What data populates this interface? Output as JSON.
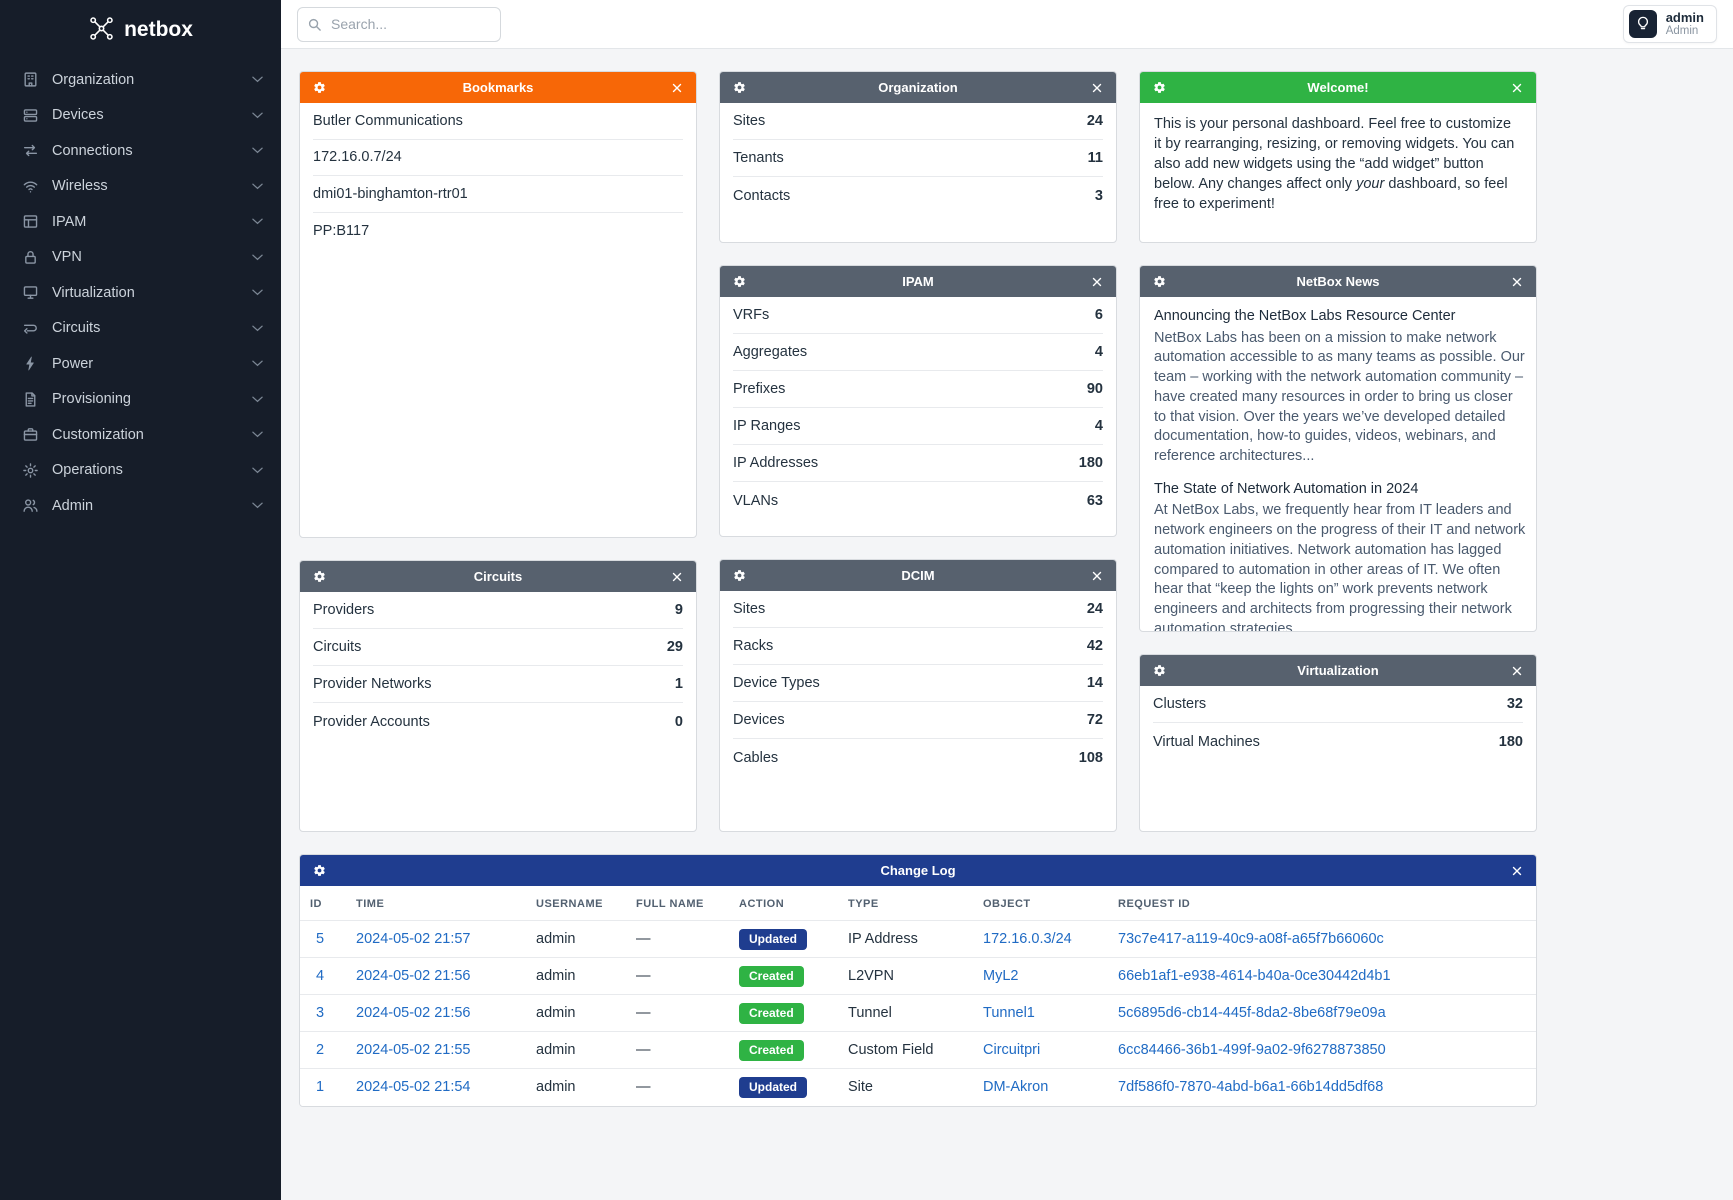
{
  "brand": {
    "logo_text": "netbox"
  },
  "topbar": {
    "search_placeholder": "Search...",
    "user": {
      "name": "admin",
      "role": "Admin"
    }
  },
  "sidebar": {
    "items": [
      {
        "name": "sidebar-item-organization",
        "label": "Organization",
        "icon": "organization-icon"
      },
      {
        "name": "sidebar-item-devices",
        "label": "Devices",
        "icon": "devices-icon"
      },
      {
        "name": "sidebar-item-connections",
        "label": "Connections",
        "icon": "connections-icon"
      },
      {
        "name": "sidebar-item-wireless",
        "label": "Wireless",
        "icon": "wireless-icon"
      },
      {
        "name": "sidebar-item-ipam",
        "label": "IPAM",
        "icon": "ipam-icon"
      },
      {
        "name": "sidebar-item-vpn",
        "label": "VPN",
        "icon": "vpn-icon"
      },
      {
        "name": "sidebar-item-virtualization",
        "label": "Virtualization",
        "icon": "virtualization-icon"
      },
      {
        "name": "sidebar-item-circuits",
        "label": "Circuits",
        "icon": "circuits-icon"
      },
      {
        "name": "sidebar-item-power",
        "label": "Power",
        "icon": "power-icon"
      },
      {
        "name": "sidebar-item-provisioning",
        "label": "Provisioning",
        "icon": "provisioning-icon"
      },
      {
        "name": "sidebar-item-customization",
        "label": "Customization",
        "icon": "customization-icon"
      },
      {
        "name": "sidebar-item-operations",
        "label": "Operations",
        "icon": "operations-icon"
      },
      {
        "name": "sidebar-item-admin",
        "label": "Admin",
        "icon": "admin-icon"
      }
    ]
  },
  "widgets": {
    "bookmarks": {
      "title": "Bookmarks",
      "items": [
        "Butler Communications",
        "172.16.0.7/24",
        "dmi01-binghamton-rtr01",
        "PP:B117"
      ]
    },
    "organization": {
      "title": "Organization",
      "stats": [
        {
          "label": "Sites",
          "value": "24"
        },
        {
          "label": "Tenants",
          "value": "11"
        },
        {
          "label": "Contacts",
          "value": "3"
        }
      ]
    },
    "welcome": {
      "title": "Welcome!",
      "text_before": "This is your personal dashboard. Feel free to customize it by rearranging, resizing, or removing widgets. You can also add new widgets using the “add widget” button below. Any changes affect only ",
      "text_italic": "your",
      "text_after": " dashboard, so feel free to experiment!"
    },
    "ipam": {
      "title": "IPAM",
      "stats": [
        {
          "label": "VRFs",
          "value": "6"
        },
        {
          "label": "Aggregates",
          "value": "4"
        },
        {
          "label": "Prefixes",
          "value": "90"
        },
        {
          "label": "IP Ranges",
          "value": "4"
        },
        {
          "label": "IP Addresses",
          "value": "180"
        },
        {
          "label": "VLANs",
          "value": "63"
        }
      ]
    },
    "news": {
      "title": "NetBox News",
      "articles": [
        {
          "headline": "Announcing the NetBox Labs Resource Center",
          "body": "NetBox Labs has been on a mission to make network automation accessible to as many teams as possible. Our team – working with the network automation community – have created many resources in order to bring us closer to that vision. Over the years we’ve developed detailed documentation, how-to guides, videos, webinars, and reference architectures..."
        },
        {
          "headline": "The State of Network Automation in 2024",
          "body": "At NetBox Labs, we frequently hear from IT leaders and network engineers on the progress of their IT and network automation initiatives. Network automation has lagged compared to automation in other areas of IT. We often hear that “keep the lights on” work prevents network engineers and architects from progressing their network automation strategies."
        }
      ]
    },
    "circuits": {
      "title": "Circuits",
      "stats": [
        {
          "label": "Providers",
          "value": "9"
        },
        {
          "label": "Circuits",
          "value": "29"
        },
        {
          "label": "Provider Networks",
          "value": "1"
        },
        {
          "label": "Provider Accounts",
          "value": "0"
        }
      ]
    },
    "dcim": {
      "title": "DCIM",
      "stats": [
        {
          "label": "Sites",
          "value": "24"
        },
        {
          "label": "Racks",
          "value": "42"
        },
        {
          "label": "Device Types",
          "value": "14"
        },
        {
          "label": "Devices",
          "value": "72"
        },
        {
          "label": "Cables",
          "value": "108"
        }
      ]
    },
    "virtualization": {
      "title": "Virtualization",
      "stats": [
        {
          "label": "Clusters",
          "value": "32"
        },
        {
          "label": "Virtual Machines",
          "value": "180"
        }
      ]
    },
    "changelog": {
      "title": "Change Log",
      "columns": [
        "ID",
        "TIME",
        "USERNAME",
        "FULL NAME",
        "ACTION",
        "TYPE",
        "OBJECT",
        "REQUEST ID"
      ],
      "rows": [
        {
          "id": "5",
          "time": "2024-05-02 21:57",
          "username": "admin",
          "full_name": "—",
          "action": {
            "label": "Updated",
            "kind": "updated"
          },
          "type": "IP Address",
          "object": "172.16.0.3/24",
          "request_id": "73c7e417-a119-40c9-a08f-a65f7b66060c"
        },
        {
          "id": "4",
          "time": "2024-05-02 21:56",
          "username": "admin",
          "full_name": "—",
          "action": {
            "label": "Created",
            "kind": "created"
          },
          "type": "L2VPN",
          "object": "MyL2",
          "request_id": "66eb1af1-e938-4614-b40a-0ce30442d4b1"
        },
        {
          "id": "3",
          "time": "2024-05-02 21:56",
          "username": "admin",
          "full_name": "—",
          "action": {
            "label": "Created",
            "kind": "created"
          },
          "type": "Tunnel",
          "object": "Tunnel1",
          "request_id": "5c6895d6-cb14-445f-8da2-8be68f79e09a"
        },
        {
          "id": "2",
          "time": "2024-05-02 21:55",
          "username": "admin",
          "full_name": "—",
          "action": {
            "label": "Created",
            "kind": "created"
          },
          "type": "Custom Field",
          "object": "Circuitpri",
          "request_id": "6cc84466-36b1-499f-9a02-9f6278873850"
        },
        {
          "id": "1",
          "time": "2024-05-02 21:54",
          "username": "admin",
          "full_name": "—",
          "action": {
            "label": "Updated",
            "kind": "updated"
          },
          "type": "Site",
          "object": "DM-Akron",
          "request_id": "7df586f0-7870-4abd-b6a1-66b14dd5df68"
        }
      ]
    }
  },
  "colors": {
    "bookmarks_header": "#f76707",
    "default_header": "#57616e",
    "welcome_header": "#2fb344",
    "changelog_header": "#1f3d8f",
    "updated_badge": "#1f3d8f",
    "created_badge": "#2fb344",
    "link": "#206bc4",
    "sidebar_bg": "#161d29"
  }
}
